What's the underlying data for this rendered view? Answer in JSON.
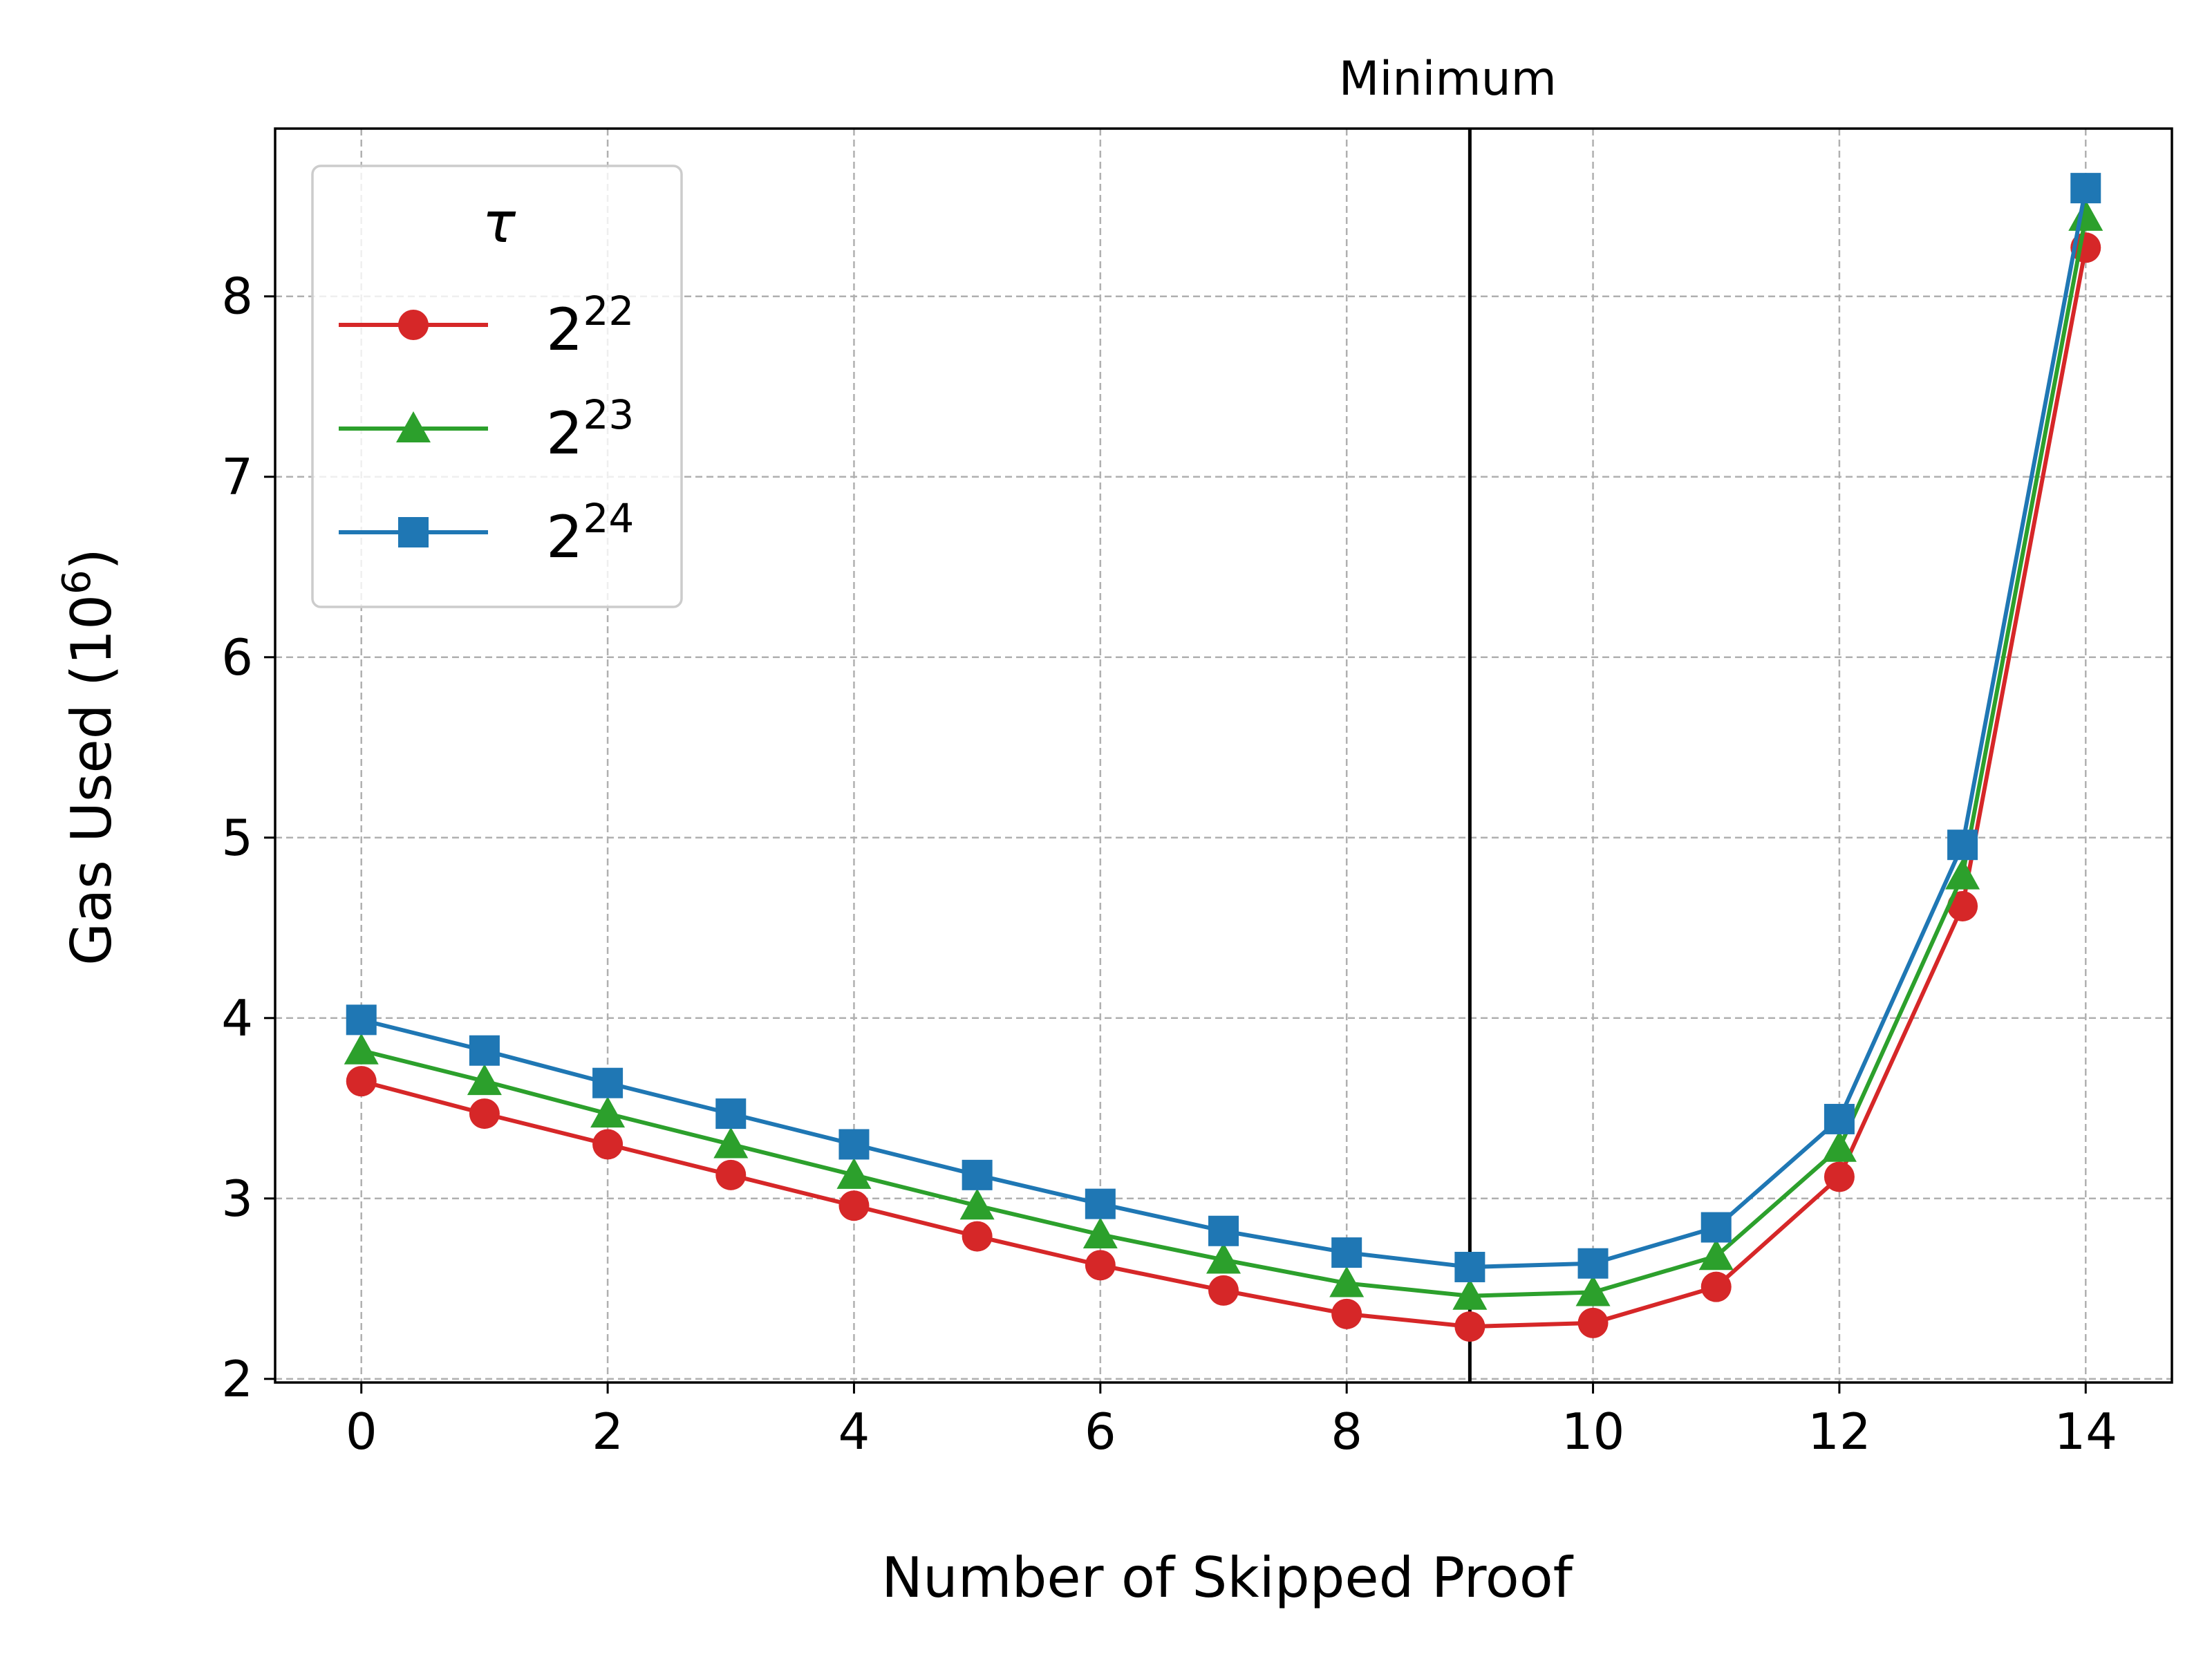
{
  "chart_data": {
    "type": "line",
    "title": "",
    "xlabel": "Number of Skipped Proof",
    "ylabel_main": "Gas Used (10",
    "ylabel_sup": "6",
    "ylabel_close": ")",
    "xlim": [
      -0.7,
      14.7
    ],
    "ylim": [
      1.98,
      8.93
    ],
    "x_ticks": [
      0,
      2,
      4,
      6,
      8,
      10,
      12,
      14
    ],
    "y_ticks": [
      2,
      3,
      4,
      5,
      6,
      7,
      8
    ],
    "grid": true,
    "vline": {
      "x": 9,
      "label": "Minimum"
    },
    "legend": {
      "title": "τ",
      "position": "upper-left"
    },
    "x": [
      0,
      1,
      2,
      3,
      4,
      5,
      6,
      7,
      8,
      9,
      10,
      11,
      12,
      13,
      14
    ],
    "series": [
      {
        "name": "2^22",
        "base": "2",
        "exp": "22",
        "color": "#d62728",
        "marker": "circle",
        "values": [
          3.65,
          3.47,
          3.3,
          3.13,
          2.96,
          2.79,
          2.63,
          2.49,
          2.36,
          2.29,
          2.31,
          2.51,
          3.12,
          4.62,
          8.27
        ]
      },
      {
        "name": "2^23",
        "base": "2",
        "exp": "23",
        "color": "#2ca02c",
        "marker": "triangle",
        "values": [
          3.82,
          3.65,
          3.47,
          3.3,
          3.13,
          2.96,
          2.8,
          2.66,
          2.53,
          2.46,
          2.48,
          2.68,
          3.28,
          4.79,
          8.44
        ]
      },
      {
        "name": "2^24",
        "base": "2",
        "exp": "24",
        "color": "#1f77b4",
        "marker": "square",
        "values": [
          3.99,
          3.82,
          3.64,
          3.47,
          3.3,
          3.13,
          2.97,
          2.82,
          2.7,
          2.62,
          2.64,
          2.84,
          3.44,
          4.96,
          8.6
        ]
      }
    ]
  }
}
